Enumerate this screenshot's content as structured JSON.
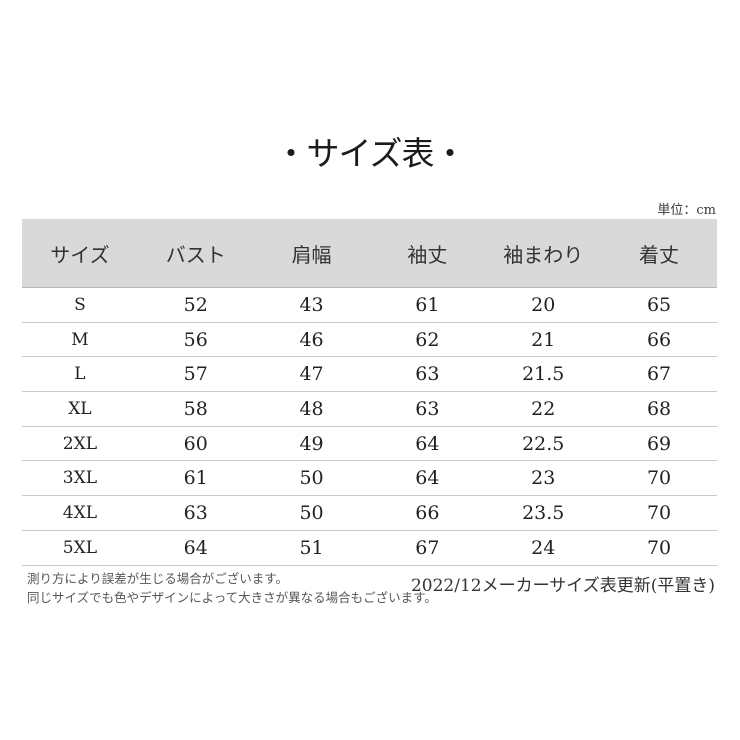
{
  "page": {
    "title": "・サイズ表・",
    "unit_label": "単位：cm"
  },
  "chart_data": {
    "type": "table",
    "title": "サイズ表",
    "unit": "cm",
    "columns": [
      "サイズ",
      "バスト",
      "肩幅",
      "袖丈",
      "袖まわり",
      "着丈"
    ],
    "rows": [
      [
        "S",
        52,
        43,
        61,
        20,
        65
      ],
      [
        "M",
        56,
        46,
        62,
        21,
        66
      ],
      [
        "L",
        57,
        47,
        63,
        21.5,
        67
      ],
      [
        "XL",
        58,
        48,
        63,
        22,
        68
      ],
      [
        "2XL",
        60,
        49,
        64,
        22.5,
        69
      ],
      [
        "3XL",
        61,
        50,
        64,
        23,
        70
      ],
      [
        "4XL",
        63,
        50,
        66,
        23.5,
        70
      ],
      [
        "5XL",
        64,
        51,
        67,
        24,
        70
      ]
    ]
  },
  "footer": {
    "notes": [
      "測り方により誤差が生じる場合がございます。",
      "同じサイズでも色やデザインによって大きさが異なる場合もございます。"
    ],
    "update_note": "2022/12メーカーサイズ表更新(平置き)"
  },
  "colors": {
    "background": "#ffffff",
    "header_bg": "#d9d9d9",
    "row_divider": "#c9c9c9",
    "text": "#222222",
    "note_text": "#575757"
  }
}
